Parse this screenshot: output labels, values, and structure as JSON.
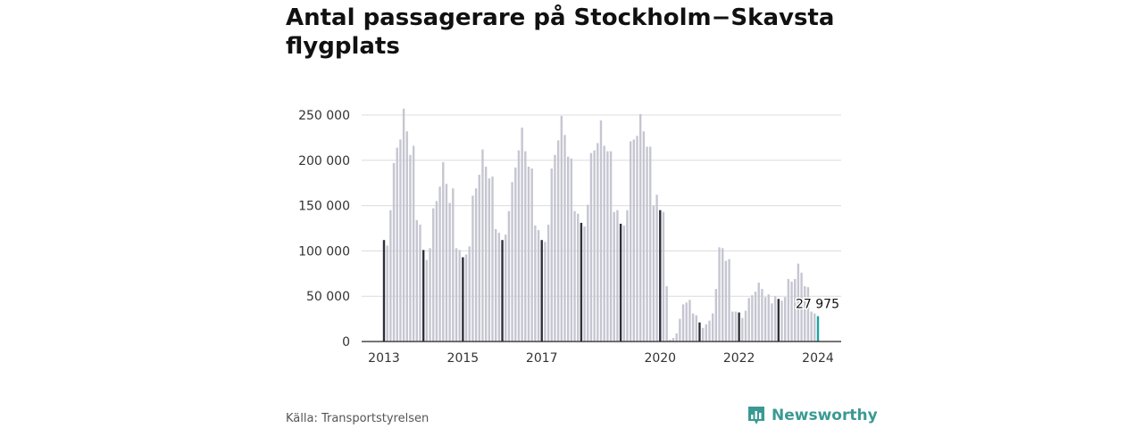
{
  "title": "Antal passagerare på Stockholm−Skavsta flygplats",
  "footer": {
    "source": "Källa: Transportstyrelsen",
    "brand": "Newsworthy"
  },
  "colors": {
    "bar": "#c6c6d2",
    "january_bar": "#2f2f3a",
    "latest_bar": "#1fa3a0",
    "grid": "#dcdcdc",
    "axis": "#222222",
    "brand": "#3a9a93"
  },
  "chart_data": {
    "type": "bar",
    "title": "Antal passagerare på Stockholm−Skavsta flygplats",
    "xlabel": "",
    "ylabel": "",
    "frequency": "monthly",
    "start": "2013-01",
    "end": "2024-01",
    "ylim": [
      0,
      250000
    ],
    "yticks": [
      0,
      50000,
      100000,
      150000,
      200000,
      250000
    ],
    "ytick_labels": [
      "0",
      "50 000",
      "100 000",
      "150 000",
      "200 000",
      "250 000"
    ],
    "xtick_labels": [
      "2013",
      "2015",
      "2017",
      "2020",
      "2022",
      "2024"
    ],
    "xtick_months": [
      "2013-01",
      "2015-01",
      "2017-01",
      "2020-01",
      "2022-01",
      "2024-01"
    ],
    "highlight": "January bars dark, latest bar teal",
    "last_value_label": "27 975",
    "grid": true,
    "values": [
      112000,
      106000,
      145000,
      197000,
      214000,
      223000,
      257000,
      232000,
      206000,
      216000,
      134000,
      129000,
      101000,
      90000,
      103000,
      147000,
      155000,
      171000,
      198000,
      174000,
      153000,
      169000,
      103000,
      101000,
      93000,
      96000,
      105000,
      161000,
      169000,
      184000,
      212000,
      193000,
      180000,
      182000,
      124000,
      120000,
      112000,
      118000,
      144000,
      176000,
      192000,
      211000,
      236000,
      210000,
      193000,
      191000,
      128000,
      123000,
      112000,
      110000,
      129000,
      191000,
      206000,
      222000,
      249000,
      228000,
      204000,
      202000,
      144000,
      141000,
      131000,
      127000,
      151000,
      208000,
      211000,
      219000,
      244000,
      216000,
      210000,
      210000,
      143000,
      145000,
      130000,
      128000,
      145000,
      221000,
      223000,
      227000,
      251000,
      232000,
      215000,
      215000,
      150000,
      162000,
      145000,
      143000,
      61000,
      2000,
      4000,
      9000,
      25000,
      41000,
      43000,
      46000,
      31000,
      29000,
      21000,
      15000,
      19000,
      23000,
      31000,
      58000,
      104000,
      103000,
      89000,
      91000,
      33000,
      33000,
      32000,
      26000,
      34000,
      48000,
      51000,
      55000,
      65000,
      58000,
      49000,
      52000,
      42000,
      50000,
      47000,
      45000,
      49000,
      69000,
      66000,
      69000,
      86000,
      76000,
      61000,
      60000,
      33000,
      31000,
      27975
    ]
  }
}
